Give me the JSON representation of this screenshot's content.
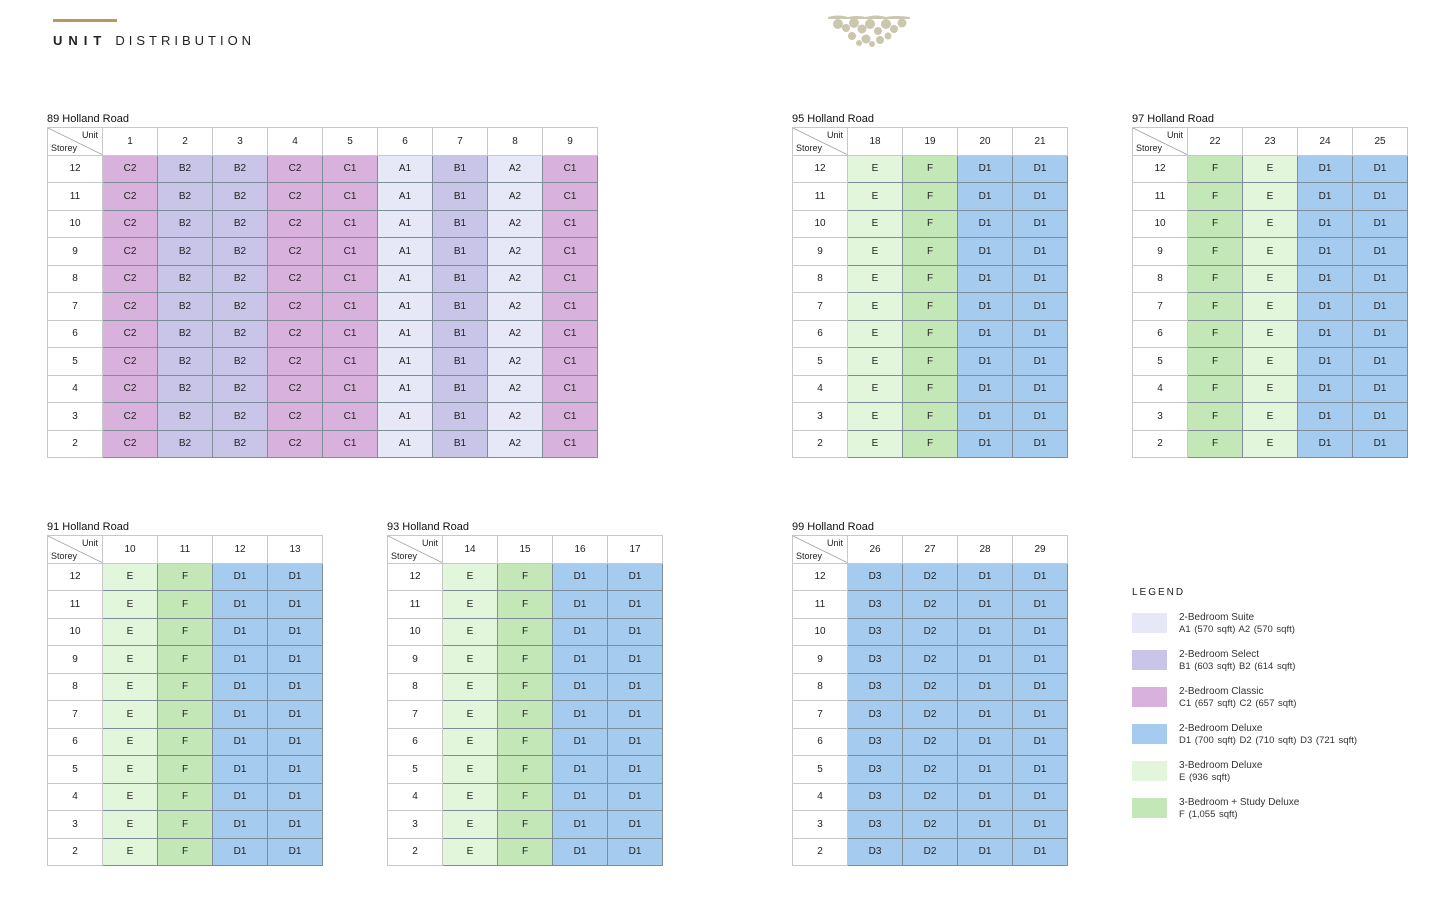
{
  "header": {
    "title_bold": "UNIT",
    "title_light": "DISTRIBUTION"
  },
  "colors": {
    "A": "#e6e8f8",
    "B": "#c8c5e8",
    "C": "#d8b2dc",
    "D": "#a5cbef",
    "E": "#e2f6dc",
    "F": "#c4e7b8",
    "accent": "#b49a5e",
    "logo": "#cbc6ae"
  },
  "corner": {
    "unit": "Unit",
    "storey": "Storey"
  },
  "storeys": [
    "12",
    "11",
    "10",
    "9",
    "8",
    "7",
    "6",
    "5",
    "4",
    "3",
    "2"
  ],
  "blocks": [
    {
      "id": "b89",
      "title": "89 Holland Road",
      "units": [
        "1",
        "2",
        "3",
        "4",
        "5",
        "6",
        "7",
        "8",
        "9"
      ],
      "types": [
        "C2",
        "B2",
        "B2",
        "C2",
        "C1",
        "A1",
        "B1",
        "A2",
        "C1"
      ]
    },
    {
      "id": "b95",
      "title": "95 Holland Road",
      "units": [
        "18",
        "19",
        "20",
        "21"
      ],
      "types": [
        "E",
        "F",
        "D1",
        "D1"
      ]
    },
    {
      "id": "b97",
      "title": "97 Holland Road",
      "units": [
        "22",
        "23",
        "24",
        "25"
      ],
      "types": [
        "F",
        "E",
        "D1",
        "D1"
      ]
    },
    {
      "id": "b91",
      "title": "91 Holland Road",
      "units": [
        "10",
        "11",
        "12",
        "13"
      ],
      "types": [
        "E",
        "F",
        "D1",
        "D1"
      ]
    },
    {
      "id": "b93",
      "title": "93 Holland Road",
      "units": [
        "14",
        "15",
        "16",
        "17"
      ],
      "types": [
        "E",
        "F",
        "D1",
        "D1"
      ]
    },
    {
      "id": "b99",
      "title": "99 Holland Road",
      "units": [
        "26",
        "27",
        "28",
        "29"
      ],
      "types": [
        "D3",
        "D2",
        "D1",
        "D1"
      ]
    }
  ],
  "legend": {
    "title": "LEGEND",
    "items": [
      {
        "key": "A",
        "name": "2-Bedroom Suite",
        "details": "A1 (570 sqft)   A2 (570 sqft)"
      },
      {
        "key": "B",
        "name": "2-Bedroom Select",
        "details": "B1 (603 sqft)   B2 (614 sqft)"
      },
      {
        "key": "C",
        "name": "2-Bedroom Classic",
        "details": "C1 (657 sqft)   C2 (657 sqft)"
      },
      {
        "key": "D",
        "name": "2-Bedroom Deluxe",
        "details": "D1 (700 sqft)   D2 (710 sqft)   D3 (721 sqft)"
      },
      {
        "key": "E",
        "name": "3-Bedroom Deluxe",
        "details": "E (936 sqft)"
      },
      {
        "key": "F",
        "name": "3-Bedroom + Study Deluxe",
        "details": "F (1,055 sqft)"
      }
    ]
  }
}
